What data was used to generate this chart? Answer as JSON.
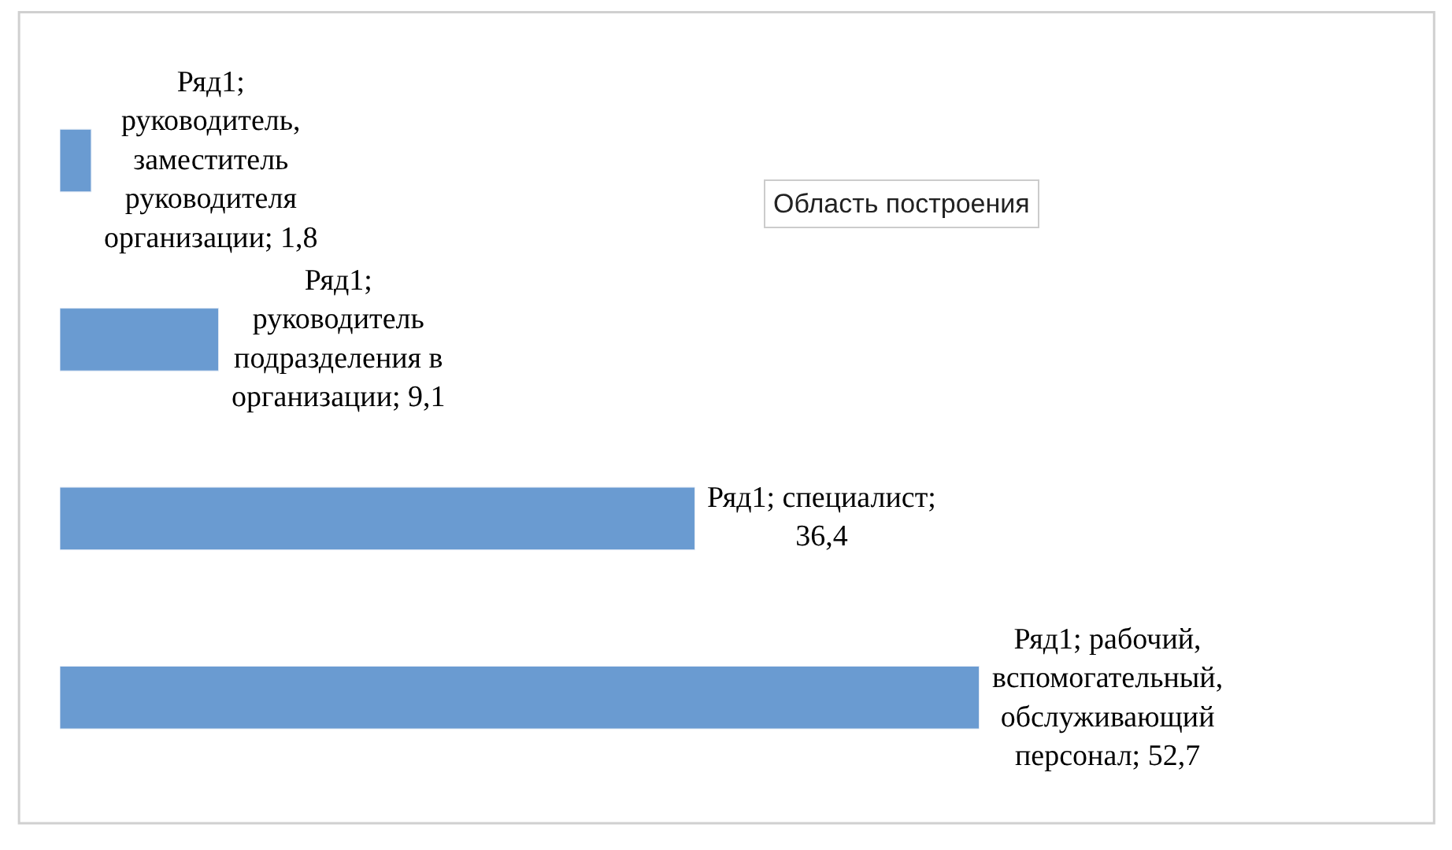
{
  "chart_data": {
    "type": "bar",
    "orientation": "horizontal",
    "categories": [
      null,
      null,
      null,
      null
    ],
    "series": [
      {
        "color": "#6a9bd1",
        "values": [
          1.8,
          9.1,
          36.4,
          52.7
        ],
        "value_labels": [
          "Ряд1; руководитель, заместитель руководителя организации; 1,8",
          "Ряд1; руководитель подразделения в организации; 9,1",
          "Ряд1; специалист; 36,4",
          "Ряд1; рабочий, вспомогательный, обслуживающий персонал; 52,7"
        ]
      }
    ],
    "tick_labels": false,
    "annotations": [
      "Область построения"
    ]
  }
}
